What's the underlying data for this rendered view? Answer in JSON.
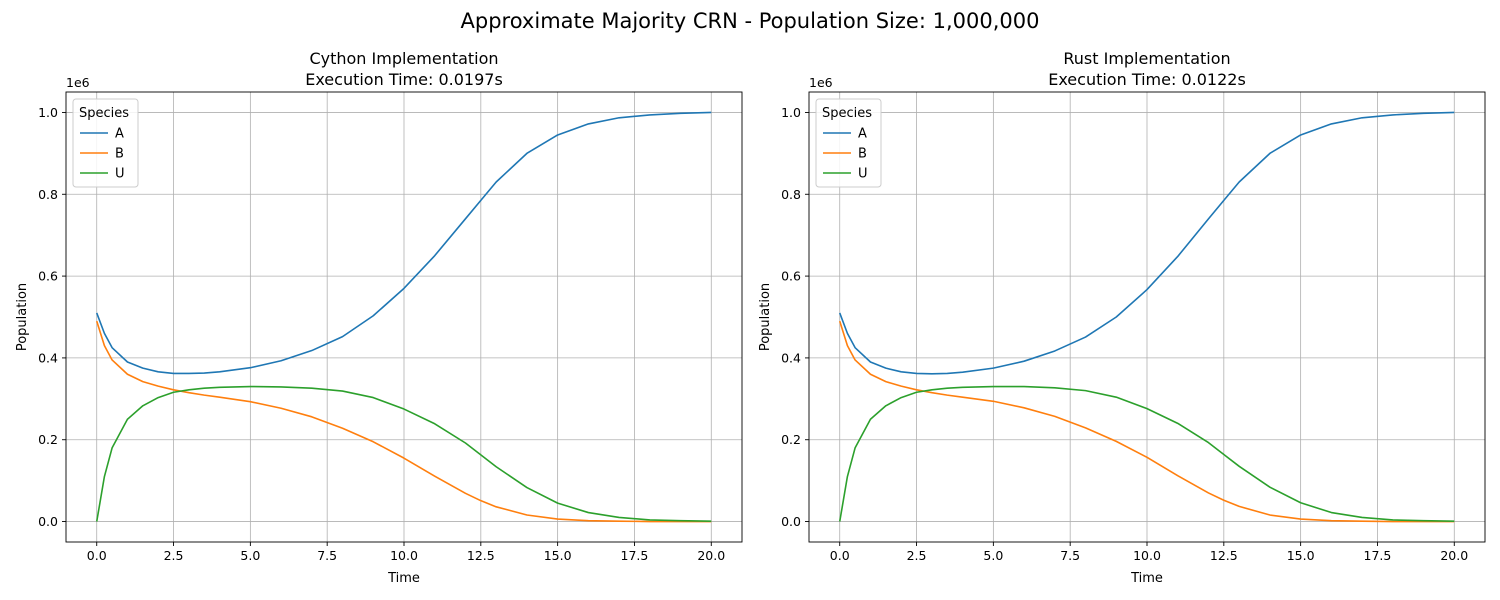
{
  "figure": {
    "suptitle": "Approximate Majority CRN - Population Size: 1,000,000"
  },
  "colors": {
    "A": "#1f77b4",
    "B": "#ff7f0e",
    "U": "#2ca02c",
    "grid": "#b0b0b0",
    "axes": "#000000",
    "background": "#ffffff"
  },
  "chart_data": [
    {
      "type": "line",
      "title": "Cython Implementation",
      "subtitle": "Execution Time: 0.0197s",
      "xlabel": "Time",
      "ylabel": "Population",
      "y_offset_label": "1e6",
      "xlim": [
        -1,
        21
      ],
      "ylim": [
        -0.05,
        1.05
      ],
      "xticks": [
        0.0,
        2.5,
        5.0,
        7.5,
        10.0,
        12.5,
        15.0,
        17.5,
        20.0
      ],
      "xtick_labels": [
        "0.0",
        "2.5",
        "5.0",
        "7.5",
        "10.0",
        "12.5",
        "15.0",
        "17.5",
        "20.0"
      ],
      "yticks": [
        0.0,
        0.2,
        0.4,
        0.6,
        0.8,
        1.0
      ],
      "ytick_labels": [
        "0.0",
        "0.2",
        "0.4",
        "0.6",
        "0.8",
        "1.0"
      ],
      "grid": true,
      "legend": {
        "title": "Species",
        "placement": "upper-left"
      },
      "x": [
        0,
        0.25,
        0.5,
        1,
        1.5,
        2,
        2.5,
        3,
        3.5,
        4,
        5,
        6,
        7,
        8,
        9,
        10,
        11,
        12,
        12.5,
        13,
        14,
        15,
        16,
        17,
        18,
        19,
        20
      ],
      "series": [
        {
          "name": "A",
          "values": [
            0.51,
            0.46,
            0.425,
            0.39,
            0.375,
            0.366,
            0.362,
            0.362,
            0.363,
            0.366,
            0.376,
            0.393,
            0.418,
            0.452,
            0.503,
            0.57,
            0.65,
            0.74,
            0.785,
            0.83,
            0.9,
            0.945,
            0.972,
            0.987,
            0.994,
            0.998,
            1.0
          ]
        },
        {
          "name": "B",
          "values": [
            0.49,
            0.43,
            0.395,
            0.36,
            0.342,
            0.331,
            0.322,
            0.315,
            0.309,
            0.304,
            0.293,
            0.277,
            0.256,
            0.228,
            0.195,
            0.155,
            0.111,
            0.069,
            0.051,
            0.036,
            0.016,
            0.006,
            0.002,
            0.001,
            0.0,
            0.0,
            0.0
          ]
        },
        {
          "name": "U",
          "values": [
            0.0,
            0.11,
            0.18,
            0.25,
            0.283,
            0.303,
            0.316,
            0.322,
            0.326,
            0.328,
            0.33,
            0.329,
            0.326,
            0.319,
            0.303,
            0.275,
            0.239,
            0.192,
            0.163,
            0.134,
            0.083,
            0.045,
            0.022,
            0.01,
            0.004,
            0.002,
            0.001
          ]
        }
      ]
    },
    {
      "type": "line",
      "title": "Rust Implementation",
      "subtitle": "Execution Time: 0.0122s",
      "xlabel": "Time",
      "ylabel": "Population",
      "y_offset_label": "1e6",
      "xlim": [
        -1,
        21
      ],
      "ylim": [
        -0.05,
        1.05
      ],
      "xticks": [
        0.0,
        2.5,
        5.0,
        7.5,
        10.0,
        12.5,
        15.0,
        17.5,
        20.0
      ],
      "xtick_labels": [
        "0.0",
        "2.5",
        "5.0",
        "7.5",
        "10.0",
        "12.5",
        "15.0",
        "17.5",
        "20.0"
      ],
      "yticks": [
        0.0,
        0.2,
        0.4,
        0.6,
        0.8,
        1.0
      ],
      "ytick_labels": [
        "0.0",
        "0.2",
        "0.4",
        "0.6",
        "0.8",
        "1.0"
      ],
      "grid": true,
      "legend": {
        "title": "Species",
        "placement": "upper-left"
      },
      "x": [
        0,
        0.25,
        0.5,
        1,
        1.5,
        2,
        2.5,
        3,
        3.5,
        4,
        5,
        6,
        7,
        8,
        9,
        10,
        11,
        12,
        12.5,
        13,
        14,
        15,
        16,
        17,
        18,
        19,
        20
      ],
      "series": [
        {
          "name": "A",
          "values": [
            0.51,
            0.46,
            0.425,
            0.39,
            0.375,
            0.366,
            0.362,
            0.361,
            0.362,
            0.365,
            0.375,
            0.392,
            0.417,
            0.451,
            0.5,
            0.567,
            0.648,
            0.74,
            0.785,
            0.83,
            0.9,
            0.945,
            0.972,
            0.987,
            0.994,
            0.998,
            1.0
          ]
        },
        {
          "name": "B",
          "values": [
            0.49,
            0.43,
            0.395,
            0.36,
            0.342,
            0.331,
            0.322,
            0.315,
            0.309,
            0.304,
            0.294,
            0.278,
            0.257,
            0.229,
            0.196,
            0.157,
            0.112,
            0.07,
            0.052,
            0.037,
            0.016,
            0.006,
            0.002,
            0.001,
            0.0,
            0.0,
            0.0
          ]
        },
        {
          "name": "U",
          "values": [
            0.0,
            0.11,
            0.18,
            0.25,
            0.283,
            0.303,
            0.316,
            0.322,
            0.326,
            0.328,
            0.33,
            0.33,
            0.327,
            0.32,
            0.304,
            0.276,
            0.24,
            0.193,
            0.164,
            0.135,
            0.084,
            0.046,
            0.022,
            0.01,
            0.004,
            0.002,
            0.001
          ]
        }
      ]
    }
  ]
}
